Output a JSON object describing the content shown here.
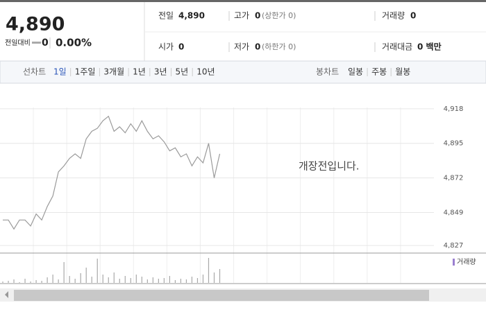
{
  "header": {
    "price": "4,890",
    "change_label": "전일대비",
    "change": "0",
    "change_rate": "0.00%",
    "rows": [
      [
        {
          "label": "전일",
          "value": "4,890"
        },
        {
          "label": "고가",
          "value": "0",
          "note": "(상한가 0)"
        },
        {
          "label": "거래량",
          "value": "0"
        }
      ],
      [
        {
          "label": "시가",
          "value": "0"
        },
        {
          "label": "저가",
          "value": "0",
          "note": "(하한가 0)"
        },
        {
          "label": "거래대금",
          "value": "0 백만"
        }
      ]
    ]
  },
  "tabs": {
    "line_label": "선차트",
    "line": [
      "1일",
      "1주일",
      "3개월",
      "1년",
      "3년",
      "5년",
      "10년"
    ],
    "selected": 0,
    "candle_label": "봉차트",
    "candle": [
      "일봉",
      "주봉",
      "월봉"
    ]
  },
  "chart_data": [
    {
      "type": "line",
      "annotation": "개장전입니다.",
      "color": "#9a9a9a",
      "values": [
        4844,
        4844,
        4838,
        4844,
        4844,
        4840,
        4848,
        4844,
        4853,
        4860,
        4876,
        4880,
        4885,
        4888,
        4885,
        4898,
        4903,
        4905,
        4910,
        4913,
        4903,
        4906,
        4902,
        4908,
        4903,
        4910,
        4903,
        4898,
        4900,
        4896,
        4890,
        4892,
        4886,
        4888,
        4880,
        4886,
        4882,
        4895,
        4872,
        4888,
        null,
        null,
        null,
        null,
        null,
        null,
        null,
        null,
        null,
        null,
        null,
        null,
        null,
        null,
        null,
        null,
        null,
        null,
        null,
        null,
        null,
        null,
        null,
        null,
        null,
        null,
        null,
        null,
        null,
        null,
        null,
        null,
        null,
        null,
        null,
        null,
        null,
        null
      ],
      "ylim": [
        4822,
        4935
      ],
      "yticks": [
        {
          "value": 4827,
          "label": "4,827"
        },
        {
          "value": 4849,
          "label": "4,849"
        },
        {
          "value": 4872,
          "label": "4,872"
        },
        {
          "value": 4895,
          "label": "4,895"
        },
        {
          "value": 4918,
          "label": "4,918"
        }
      ],
      "grid": true
    },
    {
      "type": "bar",
      "series": [
        {
          "name": "거래량",
          "color": "#a8a8a8",
          "values": [
            2,
            3,
            5,
            1,
            6,
            2,
            4,
            3,
            8,
            12,
            5,
            30,
            10,
            6,
            14,
            22,
            9,
            35,
            12,
            8,
            15,
            6,
            10,
            7,
            12,
            9,
            5,
            8,
            6,
            7,
            10,
            4,
            6,
            5,
            9,
            7,
            12,
            36,
            15,
            20,
            null,
            null,
            null,
            null,
            null,
            null,
            null,
            null,
            null,
            null,
            null,
            null,
            null,
            null,
            null,
            null,
            null,
            null,
            null,
            null,
            null,
            null,
            null,
            null,
            null,
            null,
            null,
            null,
            null,
            null,
            null,
            null,
            null,
            null,
            null,
            null,
            null,
            null
          ]
        }
      ],
      "ylim": [
        0,
        40
      ]
    }
  ]
}
